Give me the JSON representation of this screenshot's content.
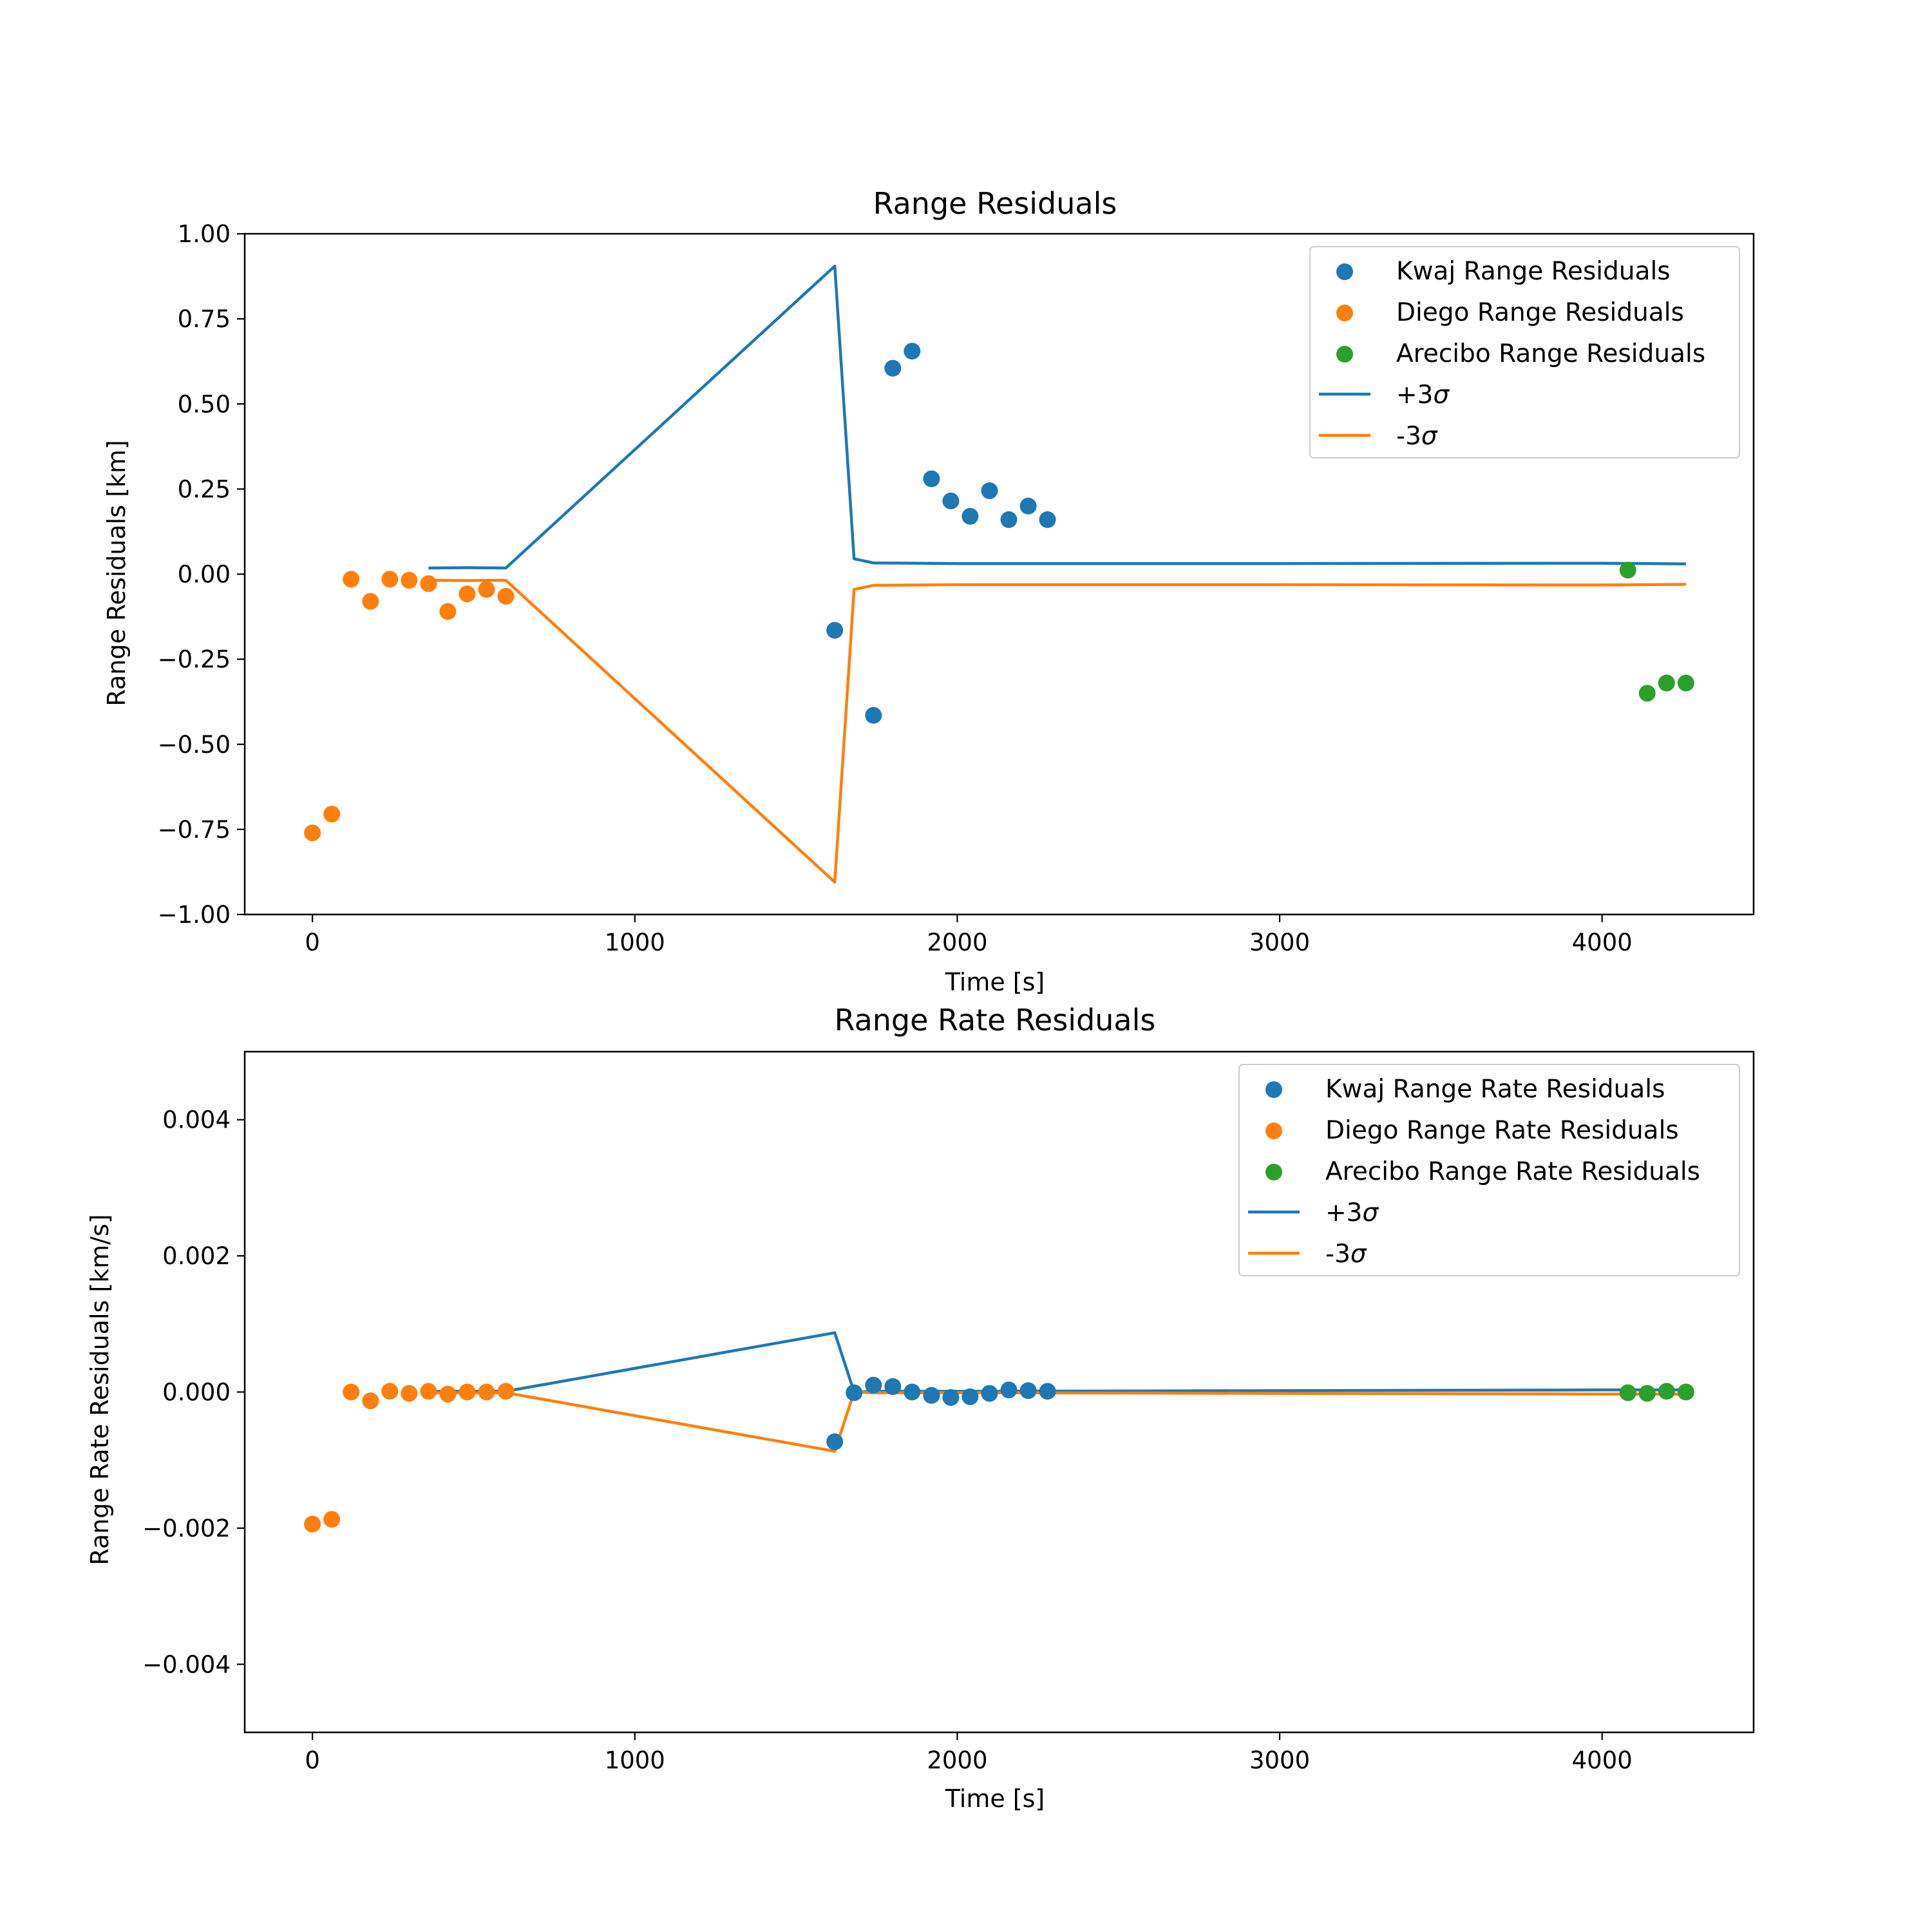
{
  "chart_data": [
    {
      "type": "scatter",
      "title": "Range Residuals",
      "xlabel": "Time [s]",
      "ylabel": "Range Residuals [km]",
      "xlim": [
        -210,
        4470
      ],
      "ylim": [
        -1.0,
        1.0
      ],
      "x_ticks": [
        0,
        1000,
        2000,
        3000,
        4000
      ],
      "x_tick_labels": [
        "0",
        "1000",
        "2000",
        "3000",
        "4000"
      ],
      "y_ticks": [
        1.0,
        0.75,
        0.5,
        0.25,
        0.0,
        -0.25,
        -0.5,
        -0.75,
        -1.0
      ],
      "y_tick_labels": [
        "1.00",
        "0.75",
        "0.50",
        "0.25",
        "0.00",
        "−0.25",
        "−0.50",
        "−0.75",
        "−1.00"
      ],
      "grid": false,
      "legend_position": "top-right",
      "series": [
        {
          "name": "Kwaj Range Residuals",
          "kind": "scatter",
          "color": "#1f77b4",
          "x": [
            1620,
            1740,
            1800,
            1860,
            1920,
            1980,
            2040,
            2100,
            2160,
            2220,
            2280
          ],
          "y": [
            -0.165,
            -0.415,
            0.605,
            0.655,
            0.28,
            0.215,
            0.17,
            0.245,
            0.16,
            0.2,
            0.16
          ]
        },
        {
          "name": "Diego Range Residuals",
          "kind": "scatter",
          "color": "#ff7f0e",
          "x": [
            0,
            60,
            120,
            180,
            240,
            300,
            360,
            420,
            480,
            540,
            600
          ],
          "y": [
            -0.76,
            -0.705,
            -0.015,
            -0.08,
            -0.015,
            -0.018,
            -0.028,
            -0.11,
            -0.058,
            -0.045,
            -0.065
          ]
        },
        {
          "name": "Arecibo Range Residuals",
          "kind": "scatter",
          "color": "#2ca02c",
          "x": [
            4080,
            4140,
            4200,
            4260
          ],
          "y": [
            0.012,
            -0.35,
            -0.32,
            -0.32
          ]
        },
        {
          "name": "+3σ",
          "kind": "line",
          "color": "#1f77b4",
          "x": [
            360,
            480,
            600,
            1620,
            1680,
            1740,
            2000,
            3000,
            4000,
            4260
          ],
          "y": [
            0.018,
            0.019,
            0.018,
            0.905,
            0.045,
            0.033,
            0.031,
            0.031,
            0.032,
            0.03
          ]
        },
        {
          "name": "-3σ",
          "kind": "line",
          "color": "#ff7f0e",
          "x": [
            360,
            480,
            600,
            1620,
            1680,
            1740,
            2000,
            3000,
            4000,
            4260
          ],
          "y": [
            -0.018,
            -0.019,
            -0.018,
            -0.905,
            -0.045,
            -0.033,
            -0.031,
            -0.031,
            -0.032,
            -0.03
          ]
        }
      ]
    },
    {
      "type": "scatter",
      "title": "Range Rate Residuals",
      "xlabel": "Time [s]",
      "ylabel": "Range Rate Residuals [km/s]",
      "xlim": [
        -210,
        4470
      ],
      "ylim": [
        -0.005,
        0.005
      ],
      "x_ticks": [
        0,
        1000,
        2000,
        3000,
        4000
      ],
      "x_tick_labels": [
        "0",
        "1000",
        "2000",
        "3000",
        "4000"
      ],
      "y_ticks": [
        0.004,
        0.002,
        0.0,
        -0.002,
        -0.004
      ],
      "y_tick_labels": [
        "0.004",
        "0.002",
        "0.000",
        "−0.002",
        "−0.004"
      ],
      "grid": false,
      "legend_position": "top-right",
      "series": [
        {
          "name": "Kwaj Range Rate Residuals",
          "kind": "scatter",
          "color": "#1f77b4",
          "x": [
            1620,
            1680,
            1740,
            1800,
            1860,
            1920,
            1980,
            2040,
            2100,
            2160,
            2220,
            2280
          ],
          "y": [
            -0.00073,
            -1e-05,
            0.0001,
            8e-05,
            0.0,
            -5e-05,
            -8e-05,
            -7e-05,
            -2e-05,
            3e-05,
            2e-05,
            1e-05
          ]
        },
        {
          "name": "Diego Range Rate Residuals",
          "kind": "scatter",
          "color": "#ff7f0e",
          "x": [
            0,
            60,
            120,
            180,
            240,
            300,
            360,
            420,
            480,
            540,
            600
          ],
          "y": [
            -0.00194,
            -0.00187,
            0.0,
            -0.00013,
            1e-05,
            -2e-05,
            1e-05,
            -3e-05,
            0.0,
            0.0,
            1e-05
          ]
        },
        {
          "name": "Arecibo Range Rate Residuals",
          "kind": "scatter",
          "color": "#2ca02c",
          "x": [
            4080,
            4140,
            4200,
            4260
          ],
          "y": [
            -1e-05,
            -2e-05,
            1e-05,
            0.0
          ]
        },
        {
          "name": "+3σ",
          "kind": "line",
          "color": "#1f77b4",
          "x": [
            360,
            480,
            600,
            1620,
            1680,
            1740,
            2000,
            3000,
            4000,
            4260
          ],
          "y": [
            1e-05,
            1e-05,
            1e-05,
            0.00087,
            0.0,
            1e-05,
            1e-05,
            2e-05,
            3e-05,
            3e-05
          ]
        },
        {
          "name": "-3σ",
          "kind": "line",
          "color": "#ff7f0e",
          "x": [
            360,
            480,
            600,
            1620,
            1680,
            1740,
            2000,
            3000,
            4000,
            4260
          ],
          "y": [
            -1e-05,
            -1e-05,
            -1e-05,
            -0.00087,
            0.0,
            -1e-05,
            -1e-05,
            -2e-05,
            -3e-05,
            -3e-05
          ]
        }
      ]
    }
  ]
}
